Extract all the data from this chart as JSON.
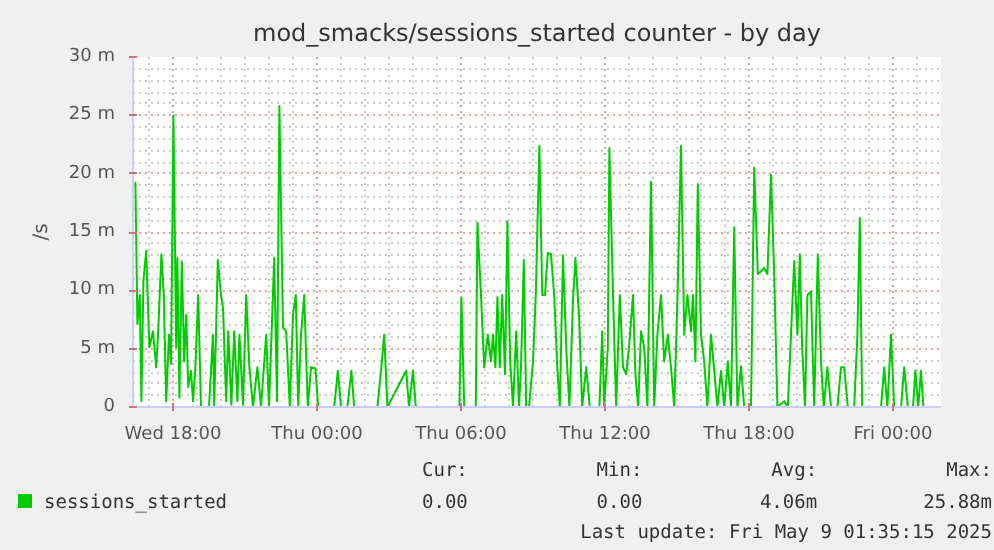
{
  "chart_data": {
    "type": "line",
    "title": "mod_smacks/sessions_started counter - by day",
    "ylabel": "/s",
    "xlim": [
      "2025-05-07T16:20",
      "2025-05-09T02:00"
    ],
    "xticks": [
      {
        "value": "2025-05-07T18:00",
        "label": "Wed 18:00"
      },
      {
        "value": "2025-05-08T00:00",
        "label": "Thu 00:00"
      },
      {
        "value": "2025-05-08T06:00",
        "label": "Thu 06:00"
      },
      {
        "value": "2025-05-08T12:00",
        "label": "Thu 12:00"
      },
      {
        "value": "2025-05-08T18:00",
        "label": "Thu 18:00"
      },
      {
        "value": "2025-05-09T00:00",
        "label": "Fri 00:00"
      }
    ],
    "ylim": [
      0,
      30
    ],
    "yticks": [
      {
        "value": 0,
        "label": "0"
      },
      {
        "value": 5,
        "label": "5 m"
      },
      {
        "value": 10,
        "label": "10 m"
      },
      {
        "value": 15,
        "label": "15 m"
      },
      {
        "value": 20,
        "label": "20 m"
      },
      {
        "value": 25,
        "label": "25 m"
      },
      {
        "value": 30,
        "label": "30 m"
      }
    ],
    "grid": true,
    "legend": "bottom",
    "series": [
      {
        "name": "sessions_started",
        "color": "#00cc00",
        "x": [
          "2025-05-07T16:26",
          "2025-05-07T16:31",
          "2025-05-07T16:37",
          "2025-05-07T16:41",
          "2025-05-07T16:46",
          "2025-05-07T16:53",
          "2025-05-07T17:01",
          "2025-05-07T17:10",
          "2025-05-07T17:18",
          "2025-05-07T17:23",
          "2025-05-07T17:31",
          "2025-05-07T17:37",
          "2025-05-07T17:43",
          "2025-05-07T17:50",
          "2025-05-07T17:55",
          "2025-05-07T18:01",
          "2025-05-07T18:08",
          "2025-05-07T18:11",
          "2025-05-07T18:16",
          "2025-05-07T18:22",
          "2025-05-07T18:28",
          "2025-05-07T18:33",
          "2025-05-07T18:38",
          "2025-05-07T18:45",
          "2025-05-07T18:50",
          "2025-05-07T18:56",
          "2025-05-07T19:03",
          "2025-05-07T19:10",
          "2025-05-07T19:30",
          "2025-05-07T19:40",
          "2025-05-07T19:43",
          "2025-05-07T19:52",
          "2025-05-07T20:00",
          "2025-05-07T20:05",
          "2025-05-07T20:13",
          "2025-05-07T20:18",
          "2025-05-07T20:26",
          "2025-05-07T20:33",
          "2025-05-07T20:41",
          "2025-05-07T20:46",
          "2025-05-07T20:55",
          "2025-05-07T21:03",
          "2025-05-07T21:11",
          "2025-05-07T21:20",
          "2025-05-07T21:31",
          "2025-05-07T21:40",
          "2025-05-07T21:53",
          "2025-05-07T22:00",
          "2025-05-07T22:13",
          "2025-05-07T22:20",
          "2025-05-07T22:26",
          "2025-05-07T22:35",
          "2025-05-07T22:43",
          "2025-05-07T22:52",
          "2025-05-07T23:00",
          "2025-05-07T23:07",
          "2025-05-07T23:13",
          "2025-05-07T23:20",
          "2025-05-07T23:28",
          "2025-05-07T23:37",
          "2025-05-07T23:45",
          "2025-05-07T23:56",
          "2025-05-08T00:03",
          "2025-05-08T00:43",
          "2025-05-08T00:52",
          "2025-05-08T01:00",
          "2025-05-08T01:16",
          "2025-05-08T01:26",
          "2025-05-08T01:33",
          "2025-05-08T02:31",
          "2025-05-08T02:40",
          "2025-05-08T02:48",
          "2025-05-08T02:56",
          "2025-05-08T03:43",
          "2025-05-08T03:50",
          "2025-05-08T04:00",
          "2025-05-08T04:07",
          "2025-05-08T05:56",
          "2025-05-08T06:01",
          "2025-05-08T06:08",
          "2025-05-08T06:37",
          "2025-05-08T06:41",
          "2025-05-08T06:50",
          "2025-05-08T06:58",
          "2025-05-08T07:07",
          "2025-05-08T07:15",
          "2025-05-08T07:20",
          "2025-05-08T07:26",
          "2025-05-08T07:31",
          "2025-05-08T07:37",
          "2025-05-08T07:43",
          "2025-05-08T07:50",
          "2025-05-08T07:56",
          "2025-05-08T08:03",
          "2025-05-08T08:10",
          "2025-05-08T08:18",
          "2025-05-08T08:25",
          "2025-05-08T08:30",
          "2025-05-08T08:37",
          "2025-05-08T08:43",
          "2025-05-08T08:50",
          "2025-05-08T09:00",
          "2025-05-08T09:07",
          "2025-05-08T09:16",
          "2025-05-08T09:23",
          "2025-05-08T09:30",
          "2025-05-08T09:37",
          "2025-05-08T09:45",
          "2025-05-08T09:53",
          "2025-05-08T10:00",
          "2025-05-08T10:07",
          "2025-05-08T10:15",
          "2025-05-08T10:23",
          "2025-05-08T10:31",
          "2025-05-08T10:40",
          "2025-05-08T10:46",
          "2025-05-08T10:55",
          "2025-05-08T11:03",
          "2025-05-08T11:13",
          "2025-05-08T11:22",
          "2025-05-08T11:46",
          "2025-05-08T11:53",
          "2025-05-08T11:58",
          "2025-05-08T12:07",
          "2025-05-08T12:11",
          "2025-05-08T12:20",
          "2025-05-08T12:28",
          "2025-05-08T12:37",
          "2025-05-08T12:45",
          "2025-05-08T12:53",
          "2025-05-08T13:00",
          "2025-05-08T13:10",
          "2025-05-08T13:16",
          "2025-05-08T13:23",
          "2025-05-08T13:30",
          "2025-05-08T13:38",
          "2025-05-08T13:46",
          "2025-05-08T13:55",
          "2025-05-08T14:03",
          "2025-05-08T14:11",
          "2025-05-08T14:20",
          "2025-05-08T14:28",
          "2025-05-08T14:37",
          "2025-05-08T14:45",
          "2025-05-08T14:53",
          "2025-05-08T15:01",
          "2025-05-08T15:10",
          "2025-05-08T15:18",
          "2025-05-08T15:26",
          "2025-05-08T15:35",
          "2025-05-08T15:40",
          "2025-05-08T15:46",
          "2025-05-08T15:52",
          "2025-05-08T16:00",
          "2025-05-08T16:08",
          "2025-05-08T16:16",
          "2025-05-08T16:25",
          "2025-05-08T16:33",
          "2025-05-08T16:41",
          "2025-05-08T16:50",
          "2025-05-08T16:58",
          "2025-05-08T17:07",
          "2025-05-08T17:15",
          "2025-05-08T17:23",
          "2025-05-08T17:31",
          "2025-05-08T17:40",
          "2025-05-08T17:48",
          "2025-05-08T18:05",
          "2025-05-08T18:13",
          "2025-05-08T18:22",
          "2025-05-08T18:38",
          "2025-05-08T18:46",
          "2025-05-08T18:55",
          "2025-05-08T19:03",
          "2025-05-08T19:11",
          "2025-05-08T19:28",
          "2025-05-08T19:37",
          "2025-05-08T19:45",
          "2025-05-08T19:53",
          "2025-05-08T20:01",
          "2025-05-08T20:07",
          "2025-05-08T20:13",
          "2025-05-08T20:20",
          "2025-05-08T20:26",
          "2025-05-08T20:35",
          "2025-05-08T20:43",
          "2025-05-08T20:52",
          "2025-05-08T21:00",
          "2025-05-08T21:07",
          "2025-05-08T21:16",
          "2025-05-08T21:25",
          "2025-05-08T21:41",
          "2025-05-08T21:50",
          "2025-05-08T21:58",
          "2025-05-08T22:07",
          "2025-05-08T22:23",
          "2025-05-08T22:31",
          "2025-05-08T22:37",
          "2025-05-08T22:43",
          "2025-05-08T23:30",
          "2025-05-08T23:38",
          "2025-05-08T23:46",
          "2025-05-08T23:55",
          "2025-05-09T00:03",
          "2025-05-09T00:20",
          "2025-05-09T00:28",
          "2025-05-09T00:37",
          "2025-05-09T00:50",
          "2025-05-09T00:56",
          "2025-05-09T01:03",
          "2025-05-09T01:10",
          "2025-05-09T01:16"
        ],
        "values": [
          19.3,
          7.1,
          9.6,
          0.5,
          10.8,
          13.4,
          5.1,
          6.5,
          3.4,
          6.5,
          13.1,
          9.6,
          0.5,
          6.2,
          3.7,
          25,
          5.1,
          12.8,
          0.8,
          12.5,
          3.9,
          7.9,
          1.7,
          3.1,
          0.5,
          3.4,
          9.6,
          0,
          0,
          6.2,
          0,
          12.6,
          9.6,
          8.5,
          0.5,
          6.5,
          0.2,
          6.5,
          0.5,
          6.2,
          0.2,
          9.6,
          3.4,
          0,
          3.4,
          0,
          6.2,
          0,
          12.8,
          0.5,
          25.8,
          6.8,
          6.5,
          0,
          7.9,
          9.6,
          0,
          6.2,
          9.6,
          0,
          3.4,
          3.3,
          0,
          0,
          3.1,
          0,
          0,
          3.1,
          0,
          0,
          3.1,
          6.2,
          0,
          3.1,
          0,
          3.1,
          0,
          0,
          9.4,
          0,
          0,
          15.8,
          9.6,
          3.4,
          6.2,
          3.9,
          6.2,
          3.4,
          9.4,
          3.4,
          9.6,
          2.8,
          15.9,
          3.9,
          0,
          6.5,
          0,
          3.4,
          12.6,
          0,
          0,
          3.9,
          9.6,
          22.4,
          9.6,
          9.6,
          13.2,
          13.1,
          9.6,
          3.9,
          0,
          13,
          5.1,
          0,
          9.1,
          12.8,
          7.9,
          0,
          3.4,
          0,
          0,
          6.5,
          0,
          5.1,
          22.2,
          9.6,
          0,
          9.6,
          3.4,
          2.8,
          5.1,
          9.6,
          2.8,
          0,
          6.5,
          5.1,
          0,
          19.3,
          0,
          6.2,
          9.6,
          3.9,
          6.2,
          3.4,
          0,
          9.1,
          22.4,
          6.2,
          9.6,
          6.5,
          9.6,
          3.9,
          19.1,
          6.2,
          3.9,
          0,
          6.2,
          3.1,
          0,
          3.1,
          0,
          3.9,
          0,
          15.4,
          0,
          3.5,
          0,
          0,
          20.5,
          11.4,
          11.9,
          11.4,
          19.9,
          11.4,
          0,
          0.5,
          0,
          6.2,
          12.5,
          6.2,
          13.1,
          5.1,
          0,
          9.6,
          9.9,
          0,
          13.1,
          3.9,
          0,
          3.4,
          0,
          0,
          3.4,
          3.4,
          0,
          0,
          6.2,
          16.2,
          0,
          0,
          3.4,
          0,
          6.2,
          0,
          0,
          3.4,
          0,
          0,
          3.1,
          0,
          3.1,
          0
        ]
      }
    ],
    "annotations": [
      "Cur:",
      "Min:",
      "Avg:",
      "Max:",
      "0.00",
      "0.00",
      "4.06m",
      "25.88m",
      "Last update: Fri May  9 01:35:15 2025"
    ]
  }
}
